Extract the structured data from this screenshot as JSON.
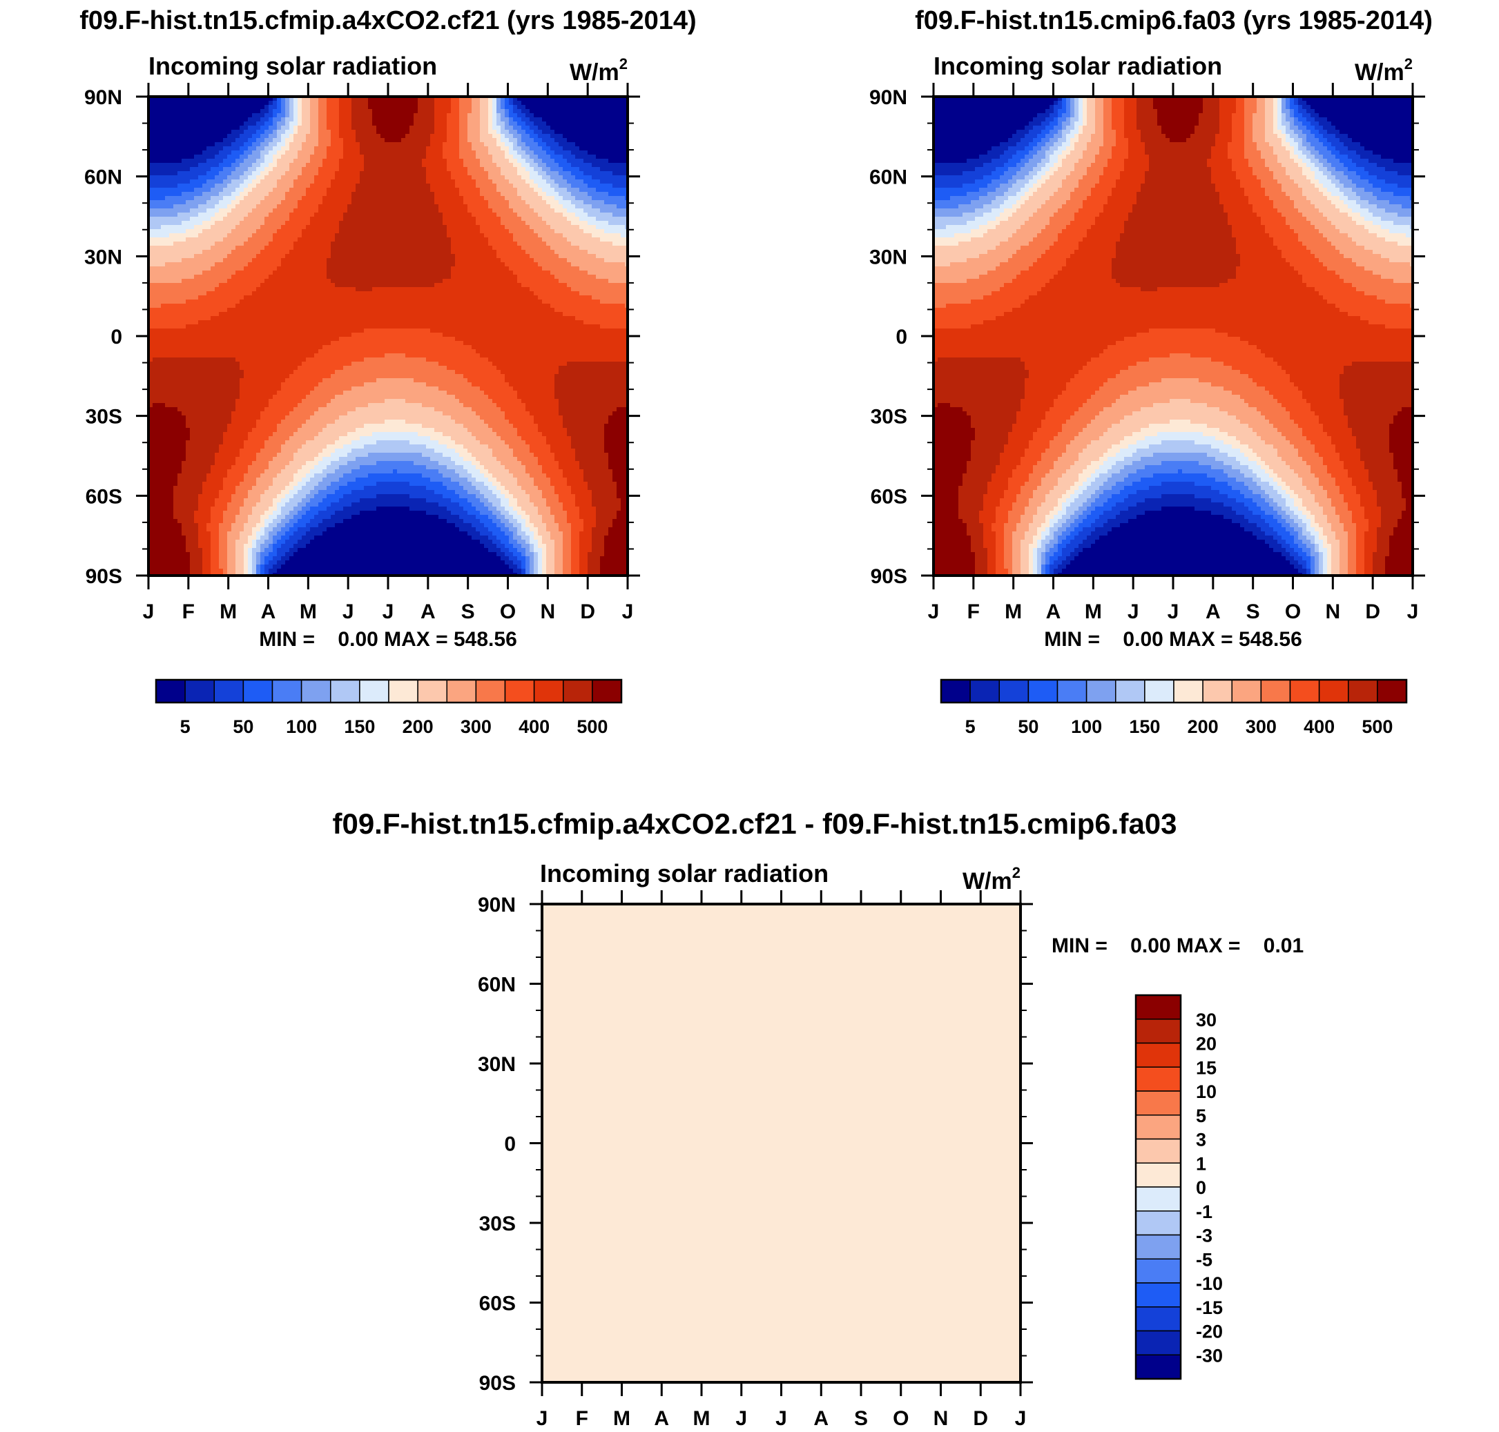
{
  "chart_data": [
    {
      "type": "heatmap",
      "title": "f09.F-hist.tn15.cfmip.a4xCO2.cf21 (yrs 1985-2014)",
      "subtitle": "Incoming solar radiation",
      "units": "W/m",
      "units_sup": "2",
      "y_tick_labels": [
        "90N",
        "60N",
        "30N",
        "0",
        "30S",
        "60S",
        "90S"
      ],
      "x_tick_labels": [
        "J",
        "F",
        "M",
        "A",
        "M",
        "J",
        "J",
        "A",
        "S",
        "O",
        "N",
        "D",
        "J"
      ],
      "min_max_text": "MIN =    0.00 MAX = 548.56",
      "min": 0.0,
      "max": 548.56,
      "colorbar": {
        "orientation": "horizontal",
        "levels": [
          5,
          25,
          50,
          75,
          100,
          125,
          150,
          175,
          200,
          250,
          300,
          350,
          400,
          450,
          500
        ],
        "labels": [
          "5",
          "50",
          "100",
          "150",
          "200",
          "300",
          "400",
          "500"
        ]
      }
    },
    {
      "type": "heatmap",
      "title": "f09.F-hist.tn15.cmip6.fa03 (yrs 1985-2014)",
      "subtitle": "Incoming solar radiation",
      "units": "W/m",
      "units_sup": "2",
      "y_tick_labels": [
        "90N",
        "60N",
        "30N",
        "0",
        "30S",
        "60S",
        "90S"
      ],
      "x_tick_labels": [
        "J",
        "F",
        "M",
        "A",
        "M",
        "J",
        "J",
        "A",
        "S",
        "O",
        "N",
        "D",
        "J"
      ],
      "min_max_text": "MIN =    0.00 MAX = 548.56",
      "min": 0.0,
      "max": 548.56,
      "colorbar": {
        "orientation": "horizontal",
        "levels": [
          5,
          25,
          50,
          75,
          100,
          125,
          150,
          175,
          200,
          250,
          300,
          350,
          400,
          450,
          500
        ],
        "labels": [
          "5",
          "50",
          "100",
          "150",
          "200",
          "300",
          "400",
          "500"
        ]
      }
    },
    {
      "type": "heatmap",
      "title": "f09.F-hist.tn15.cfmip.a4xCO2.cf21 - f09.F-hist.tn15.cmip6.fa03",
      "subtitle": "Incoming solar radiation",
      "units": "W/m",
      "units_sup": "2",
      "y_tick_labels": [
        "90N",
        "60N",
        "30N",
        "0",
        "30S",
        "60S",
        "90S"
      ],
      "x_tick_labels": [
        "J",
        "F",
        "M",
        "A",
        "M",
        "J",
        "J",
        "A",
        "S",
        "O",
        "N",
        "D",
        "J"
      ],
      "min_max_text": "MIN =    0.00 MAX =    0.01",
      "min": 0.0,
      "max": 0.01,
      "fill_level": "0 to 1",
      "colorbar": {
        "orientation": "vertical",
        "labels": [
          "30",
          "20",
          "15",
          "10",
          "5",
          "3",
          "1",
          "0",
          "-1",
          "-3",
          "-5",
          "-10",
          "-15",
          "-20",
          "-30"
        ]
      }
    }
  ],
  "palette": {
    "sequential": [
      "#00008b",
      "#0a24b4",
      "#1441d9",
      "#1e5cf5",
      "#4a7df5",
      "#7ea1f0",
      "#b0c8f5",
      "#dcebfb",
      "#fde9d6",
      "#fcc8ad",
      "#fba580",
      "#f8784a",
      "#f44e1e",
      "#e0340a",
      "#b82409",
      "#8b0000"
    ],
    "diverging": [
      "#8b0000",
      "#b82409",
      "#e0340a",
      "#f44e1e",
      "#f8784a",
      "#fba580",
      "#fcc8ad",
      "#fde9d6",
      "#dcebfb",
      "#b0c8f5",
      "#7ea1f0",
      "#4a7df5",
      "#1e5cf5",
      "#1441d9",
      "#0a24b4",
      "#00008b"
    ],
    "difference_fill": "#fde9d6"
  }
}
